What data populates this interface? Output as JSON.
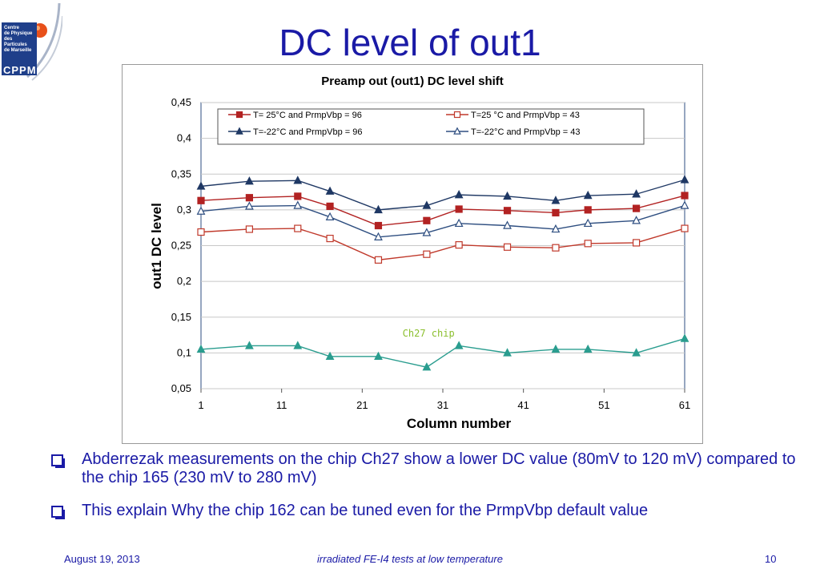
{
  "slide": {
    "title": "DC level of out1",
    "logo": {
      "lines": [
        "Centre",
        "de Physique",
        "des Particules",
        "de Marseille"
      ],
      "acronym": "CPPM"
    },
    "bullets": [
      "Abderrezak measurements on the chip Ch27 show a lower DC value (80mV to 120 mV) compared to the chip 165 (230 mV to 280 mV)",
      "This explain Why the chip 162 can be tuned even for the PrmpVbp default value"
    ],
    "footer": {
      "date": "August 19, 2013",
      "center": "irradiated FE-I4 tests at low temperature",
      "page": "10"
    },
    "colors": {
      "text": "#1a1aa6"
    }
  },
  "chart_data": {
    "type": "line",
    "title": "Preamp out (out1) DC level shift",
    "xlabel": "Column number",
    "ylabel": "out1  DC level",
    "xlim": [
      1,
      61
    ],
    "ylim": [
      0.05,
      0.45
    ],
    "x_ticks": [
      1,
      11,
      21,
      31,
      41,
      51,
      61
    ],
    "y_ticks": [
      "0,05",
      "0,1",
      "0,15",
      "0,2",
      "0,25",
      "0,3",
      "0,35",
      "0,4",
      "0,45"
    ],
    "y_tick_values": [
      0.05,
      0.1,
      0.15,
      0.2,
      0.25,
      0.3,
      0.35,
      0.4,
      0.45
    ],
    "grid": "horizontal",
    "legend_position": "top",
    "x": [
      1,
      7,
      13,
      17,
      23,
      29,
      33,
      39,
      45,
      49,
      55,
      61
    ],
    "series": [
      {
        "name": "T= 25°C  and PrmpVbp = 96",
        "color": "#b22222",
        "marker": "square",
        "filled": true,
        "values": [
          0.313,
          0.317,
          0.319,
          0.305,
          0.278,
          0.285,
          0.301,
          0.299,
          0.296,
          0.3,
          0.302,
          0.32
        ]
      },
      {
        "name": "T=25 °C  and PrmpVbp = 43",
        "color": "#c0392b",
        "marker": "square",
        "filled": false,
        "values": [
          0.269,
          0.273,
          0.274,
          0.26,
          0.23,
          0.238,
          0.251,
          0.248,
          0.247,
          0.253,
          0.254,
          0.274
        ]
      },
      {
        "name": "T=-22°C and PrmpVbp = 96",
        "color": "#1f3864",
        "marker": "triangle",
        "filled": true,
        "values": [
          0.333,
          0.34,
          0.341,
          0.326,
          0.3,
          0.306,
          0.321,
          0.319,
          0.313,
          0.32,
          0.322,
          0.342
        ]
      },
      {
        "name": "T=-22°C and PrmpVbp = 43",
        "color": "#2e4e80",
        "marker": "triangle",
        "filled": false,
        "values": [
          0.298,
          0.305,
          0.306,
          0.29,
          0.262,
          0.268,
          0.281,
          0.278,
          0.273,
          0.281,
          0.285,
          0.306
        ]
      },
      {
        "name": "",
        "color": "#2a9d8f",
        "marker": "triangle",
        "filled": true,
        "values": [
          0.105,
          0.11,
          0.11,
          0.095,
          0.095,
          0.08,
          0.11,
          0.1,
          0.105,
          0.105,
          0.1,
          0.12
        ]
      }
    ],
    "annotations": [
      {
        "text": "Ch27 chip",
        "x": 26,
        "y": 0.123
      }
    ]
  }
}
